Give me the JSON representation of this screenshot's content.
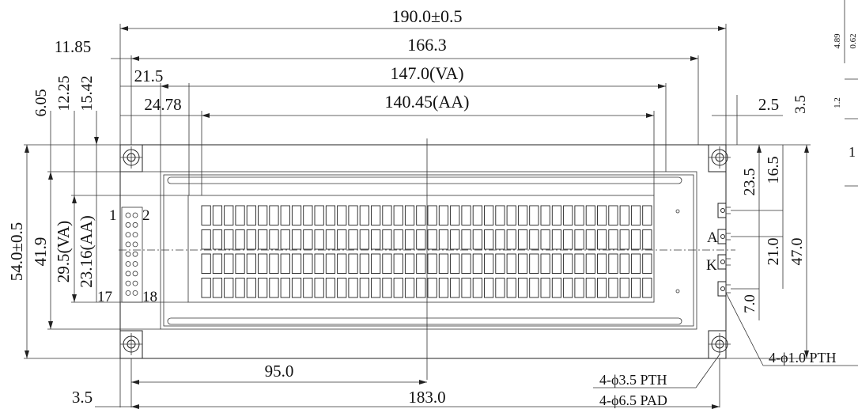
{
  "dimensions": {
    "overall_width": "190.0±0.5",
    "pcb_hole_span": "166.3",
    "viewing_area_width": "147.0(VA)",
    "active_area_width": "140.45(AA)",
    "left_to_hole": "11.85",
    "left_to_va": "21.5",
    "left_to_aa": "24.78",
    "right_gap": "2.5",
    "right_top": "3.5",
    "top_offset_1": "6.05",
    "top_offset_2": "12.25",
    "top_offset_3": "15.42",
    "overall_height": "54.0±0.5",
    "frame_height": "41.9",
    "va_height": "29.5(VA)",
    "aa_height": "23.16(AA)",
    "led_a_offset": "23.5",
    "led_offset_2": "16.5",
    "led_ak_spacing": "21.0",
    "led_height": "47.0",
    "led_bottom": "7.0",
    "center_to_left": "95.0",
    "hole_to_hole": "183.0",
    "left_edge_to_hole": "3.5",
    "mount_hole": "4-ϕ3.5 PTH",
    "mount_pad": "4-ϕ6.5 PAD",
    "led_pin_hole": "4-ϕ1.0 PTH",
    "side_top_1": "4.89",
    "side_top_2": "0.62",
    "side_mid": "1.2",
    "side_label_1": "1"
  },
  "pins": {
    "pin1": "1",
    "pin2": "2",
    "pin17": "17",
    "pin18": "18",
    "anode": "A",
    "cathode": "K"
  },
  "display": {
    "columns": 40,
    "rows": 4
  }
}
